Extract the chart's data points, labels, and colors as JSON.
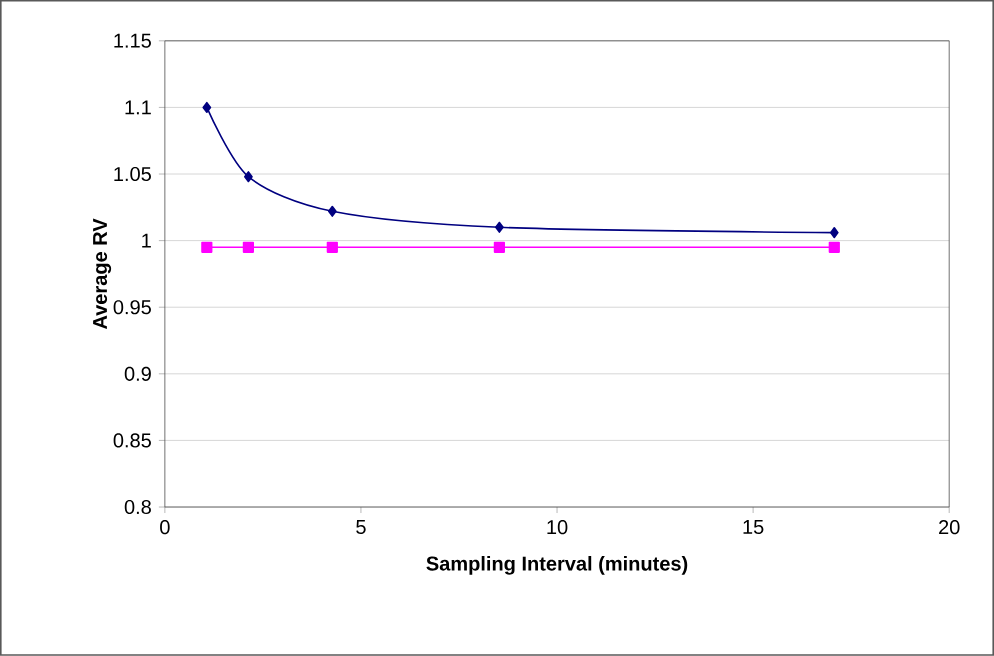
{
  "chart_data": {
    "type": "line",
    "xlabel": "Sampling Interval (minutes)",
    "ylabel": "Average RV",
    "x": [
      1.07,
      2.13,
      4.27,
      8.53,
      17.07
    ],
    "series": [
      {
        "color": "#000080",
        "values": [
          1.1,
          1.048,
          1.022,
          1.01,
          1.006
        ],
        "marker": "diamond"
      },
      {
        "color": "#ff00ff",
        "values": [
          0.995,
          0.995,
          0.995,
          0.995,
          0.995
        ],
        "marker": "square"
      }
    ],
    "xlim": [
      0,
      20
    ],
    "ylim": [
      0.8,
      1.15
    ],
    "xticks": [
      0,
      5,
      10,
      15,
      20
    ],
    "yticks": [
      0.8,
      0.85,
      0.9,
      0.95,
      1,
      1.05,
      1.1,
      1.15
    ],
    "grid": "y"
  }
}
